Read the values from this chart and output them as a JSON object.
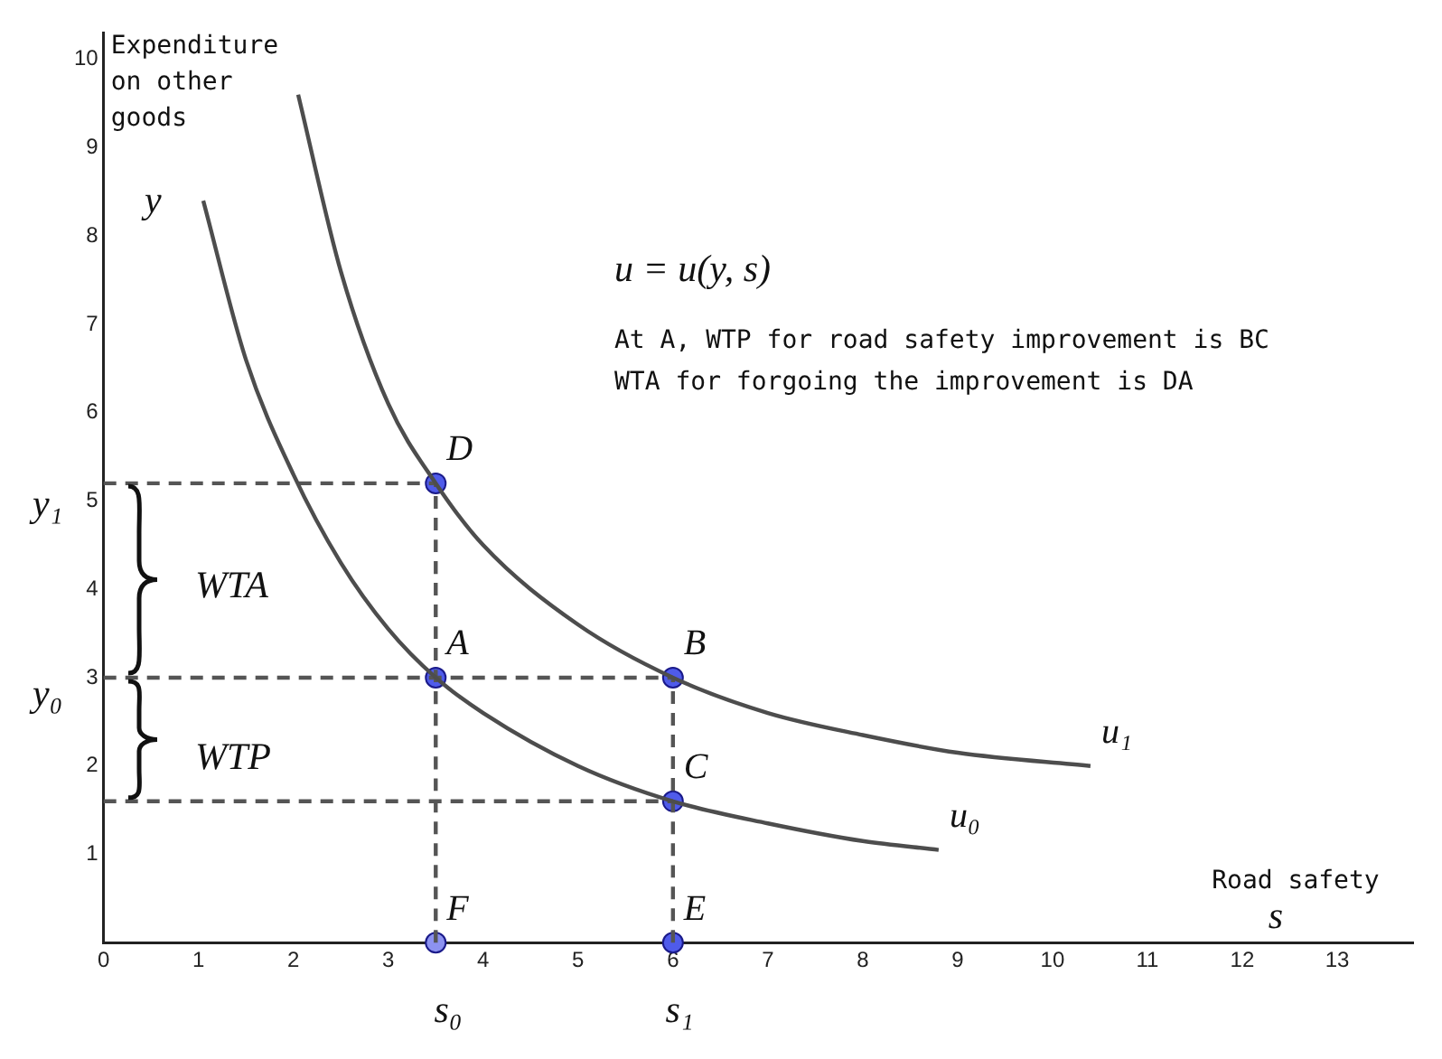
{
  "chart_data": {
    "type": "line",
    "xlabel": "Road safety",
    "ylabel": "Expenditure on other goods",
    "xlim": [
      0,
      13.8
    ],
    "ylim": [
      0,
      10.3
    ],
    "xticks": [
      0,
      1,
      2,
      3,
      4,
      5,
      6,
      7,
      8,
      9,
      10,
      11,
      12,
      13
    ],
    "yticks": [
      1,
      2,
      3,
      4,
      5,
      6,
      7,
      8,
      9,
      10
    ],
    "grid": false,
    "legend": false,
    "series": [
      {
        "type": "line",
        "color": "#4d4d4d",
        "marker": "none",
        "line_style": "solid",
        "x": [
          2.05,
          2.5,
          3,
          3.5,
          4,
          5,
          6,
          7,
          8,
          9,
          10.4
        ],
        "values": [
          9.6,
          7.6,
          6.1,
          5.2,
          4.5,
          3.6,
          3.0,
          2.6,
          2.35,
          2.15,
          2.0
        ]
      },
      {
        "type": "line",
        "color": "#4d4d4d",
        "marker": "none",
        "line_style": "solid",
        "x": [
          1.05,
          1.5,
          2,
          2.5,
          3,
          3.5,
          4,
          5,
          6,
          7,
          8,
          8.8
        ],
        "values": [
          8.4,
          6.6,
          5.3,
          4.3,
          3.55,
          3.0,
          2.6,
          2.0,
          1.6,
          1.35,
          1.15,
          1.05
        ]
      },
      {
        "type": "line",
        "color": "#555555",
        "marker": "none",
        "line_style": "dashed",
        "x": [
          0,
          3.5
        ],
        "values": [
          5.2,
          5.2
        ]
      },
      {
        "type": "line",
        "color": "#555555",
        "marker": "none",
        "line_style": "dashed",
        "x": [
          0,
          6
        ],
        "values": [
          3,
          3
        ]
      },
      {
        "type": "line",
        "color": "#555555",
        "marker": "none",
        "line_style": "dashed",
        "x": [
          0,
          6
        ],
        "values": [
          1.6,
          1.6
        ]
      },
      {
        "type": "line",
        "color": "#555555",
        "marker": "none",
        "line_style": "dashed",
        "x": [
          3.5,
          3.5
        ],
        "values": [
          0,
          5.2
        ]
      },
      {
        "type": "line",
        "color": "#555555",
        "marker": "none",
        "line_style": "dashed",
        "x": [
          6,
          6
        ],
        "values": [
          0,
          3
        ]
      },
      {
        "type": "scatter",
        "color": "#4f5bea",
        "marker": "circle",
        "x": [
          3.5,
          6,
          6,
          3.5,
          6,
          3.5
        ],
        "values": [
          3,
          3,
          1.6,
          5.2,
          0,
          0
        ],
        "colors": [
          "#4f5bea",
          "#4f5bea",
          "#4f5bea",
          "#4f5bea",
          "#4f5bea",
          "#8c92f0"
        ]
      }
    ],
    "annotations": [
      "u = u(y, s)",
      "At A, WTP for road safety improvement is BC",
      "WTA for forgoing the improvement is DA",
      {
        "text": "A",
        "x": 3.5,
        "y": 3
      },
      {
        "text": "B",
        "x": 6,
        "y": 3
      },
      {
        "text": "C",
        "x": 6,
        "y": 1.6
      },
      {
        "text": "D",
        "x": 3.5,
        "y": 5.2
      },
      {
        "text": "E",
        "x": 6,
        "y": 0
      },
      {
        "text": "F",
        "x": 3.5,
        "y": 0
      },
      {
        "text": "u₁",
        "x": 10.4,
        "y": 2.0
      },
      {
        "text": "u₀",
        "x": 8.8,
        "y": 1.05
      },
      "y₁",
      "y₀",
      "s₀",
      "s₁",
      "y",
      "s",
      "WTA",
      "WTP"
    ]
  }
}
